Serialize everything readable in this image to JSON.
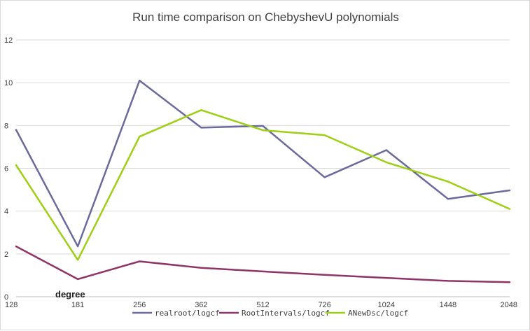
{
  "chart_data": {
    "type": "line",
    "title": "Run time comparison on ChebyshevU polynomials",
    "categories": [
      "128",
      "181",
      "256",
      "362",
      "512",
      "726",
      "1024",
      "1448",
      "2048"
    ],
    "series": [
      {
        "name": "realroot/logcf",
        "color": "#6a6a9c",
        "values": [
          7.8,
          2.35,
          10.1,
          7.9,
          7.98,
          5.58,
          6.85,
          4.57,
          4.97
        ]
      },
      {
        "name": "RootIntervals/logcf",
        "color": "#8e3466",
        "values": [
          2.35,
          0.82,
          1.65,
          1.35,
          1.18,
          1.02,
          0.88,
          0.74,
          0.68
        ]
      },
      {
        "name": "ANewDsc/logcf",
        "color": "#9dcf14",
        "values": [
          6.15,
          1.72,
          7.48,
          8.72,
          7.78,
          7.55,
          6.28,
          5.38,
          4.1
        ]
      }
    ],
    "yticks": [
      "0",
      "2",
      "4",
      "6",
      "8",
      "10",
      "12"
    ],
    "ylim": [
      0,
      12
    ],
    "grid": true,
    "legend": "bottom",
    "annotation": "degree"
  }
}
